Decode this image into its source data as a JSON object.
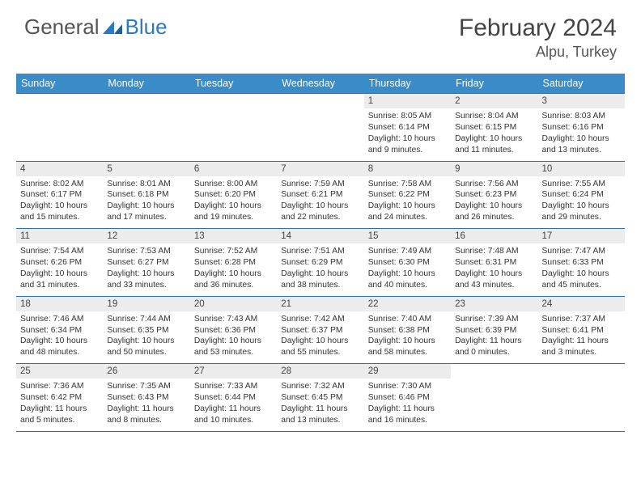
{
  "logo": {
    "text1": "General",
    "text2": "Blue"
  },
  "header": {
    "title": "February 2024",
    "location": "Alpu, Turkey"
  },
  "colors": {
    "header_bg": "#3a8cc9",
    "header_fg": "#ffffff",
    "daynum_bg": "#ececec",
    "border": "#2b6fa5",
    "logo_blue": "#2b7abf",
    "text": "#333333"
  },
  "dayNames": [
    "Sunday",
    "Monday",
    "Tuesday",
    "Wednesday",
    "Thursday",
    "Friday",
    "Saturday"
  ],
  "weeks": [
    [
      null,
      null,
      null,
      null,
      {
        "n": "1",
        "sr": "8:05 AM",
        "ss": "6:14 PM",
        "dl": "10 hours and 9 minutes."
      },
      {
        "n": "2",
        "sr": "8:04 AM",
        "ss": "6:15 PM",
        "dl": "10 hours and 11 minutes."
      },
      {
        "n": "3",
        "sr": "8:03 AM",
        "ss": "6:16 PM",
        "dl": "10 hours and 13 minutes."
      }
    ],
    [
      {
        "n": "4",
        "sr": "8:02 AM",
        "ss": "6:17 PM",
        "dl": "10 hours and 15 minutes."
      },
      {
        "n": "5",
        "sr": "8:01 AM",
        "ss": "6:18 PM",
        "dl": "10 hours and 17 minutes."
      },
      {
        "n": "6",
        "sr": "8:00 AM",
        "ss": "6:20 PM",
        "dl": "10 hours and 19 minutes."
      },
      {
        "n": "7",
        "sr": "7:59 AM",
        "ss": "6:21 PM",
        "dl": "10 hours and 22 minutes."
      },
      {
        "n": "8",
        "sr": "7:58 AM",
        "ss": "6:22 PM",
        "dl": "10 hours and 24 minutes."
      },
      {
        "n": "9",
        "sr": "7:56 AM",
        "ss": "6:23 PM",
        "dl": "10 hours and 26 minutes."
      },
      {
        "n": "10",
        "sr": "7:55 AM",
        "ss": "6:24 PM",
        "dl": "10 hours and 29 minutes."
      }
    ],
    [
      {
        "n": "11",
        "sr": "7:54 AM",
        "ss": "6:26 PM",
        "dl": "10 hours and 31 minutes."
      },
      {
        "n": "12",
        "sr": "7:53 AM",
        "ss": "6:27 PM",
        "dl": "10 hours and 33 minutes."
      },
      {
        "n": "13",
        "sr": "7:52 AM",
        "ss": "6:28 PM",
        "dl": "10 hours and 36 minutes."
      },
      {
        "n": "14",
        "sr": "7:51 AM",
        "ss": "6:29 PM",
        "dl": "10 hours and 38 minutes."
      },
      {
        "n": "15",
        "sr": "7:49 AM",
        "ss": "6:30 PM",
        "dl": "10 hours and 40 minutes."
      },
      {
        "n": "16",
        "sr": "7:48 AM",
        "ss": "6:31 PM",
        "dl": "10 hours and 43 minutes."
      },
      {
        "n": "17",
        "sr": "7:47 AM",
        "ss": "6:33 PM",
        "dl": "10 hours and 45 minutes."
      }
    ],
    [
      {
        "n": "18",
        "sr": "7:46 AM",
        "ss": "6:34 PM",
        "dl": "10 hours and 48 minutes."
      },
      {
        "n": "19",
        "sr": "7:44 AM",
        "ss": "6:35 PM",
        "dl": "10 hours and 50 minutes."
      },
      {
        "n": "20",
        "sr": "7:43 AM",
        "ss": "6:36 PM",
        "dl": "10 hours and 53 minutes."
      },
      {
        "n": "21",
        "sr": "7:42 AM",
        "ss": "6:37 PM",
        "dl": "10 hours and 55 minutes."
      },
      {
        "n": "22",
        "sr": "7:40 AM",
        "ss": "6:38 PM",
        "dl": "10 hours and 58 minutes."
      },
      {
        "n": "23",
        "sr": "7:39 AM",
        "ss": "6:39 PM",
        "dl": "11 hours and 0 minutes."
      },
      {
        "n": "24",
        "sr": "7:37 AM",
        "ss": "6:41 PM",
        "dl": "11 hours and 3 minutes."
      }
    ],
    [
      {
        "n": "25",
        "sr": "7:36 AM",
        "ss": "6:42 PM",
        "dl": "11 hours and 5 minutes."
      },
      {
        "n": "26",
        "sr": "7:35 AM",
        "ss": "6:43 PM",
        "dl": "11 hours and 8 minutes."
      },
      {
        "n": "27",
        "sr": "7:33 AM",
        "ss": "6:44 PM",
        "dl": "11 hours and 10 minutes."
      },
      {
        "n": "28",
        "sr": "7:32 AM",
        "ss": "6:45 PM",
        "dl": "11 hours and 13 minutes."
      },
      {
        "n": "29",
        "sr": "7:30 AM",
        "ss": "6:46 PM",
        "dl": "11 hours and 16 minutes."
      },
      null,
      null
    ]
  ],
  "labels": {
    "sunrise": "Sunrise: ",
    "sunset": "Sunset: ",
    "daylight": "Daylight: "
  }
}
